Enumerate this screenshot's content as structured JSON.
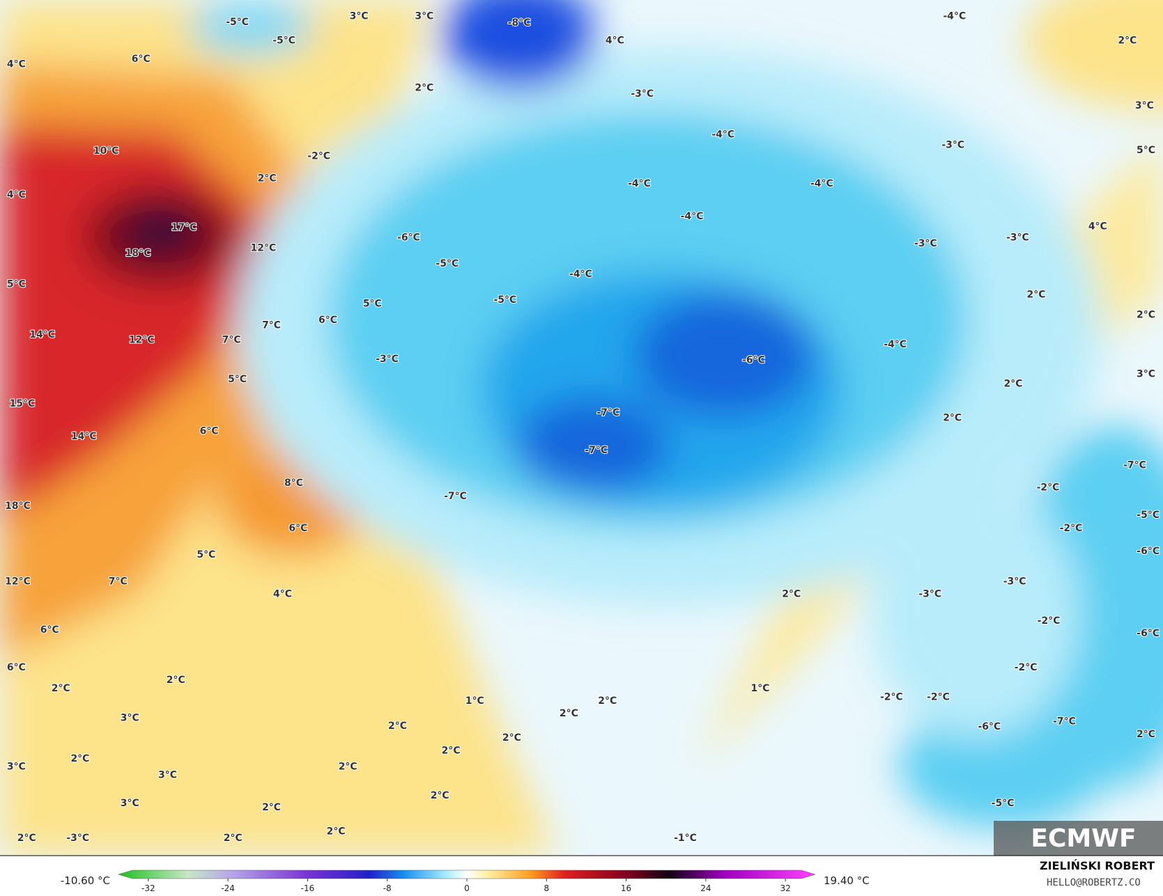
{
  "map_labels": [
    "3°C",
    "3°C",
    "-8°C",
    "-5°C",
    "-5°C",
    "-4°C",
    "2°C",
    "6°C",
    "4°C",
    "4°C",
    "2°C",
    "-3°C",
    "3°C",
    "10°C",
    "-2°C",
    "-4°C",
    "-3°C",
    "5°C",
    "2°C",
    "4°C",
    "-4°C",
    "-4°C",
    "-4°C",
    "17°C",
    "4°C",
    "-6°C",
    "-3°C",
    "-3°C",
    "12°C",
    "18°C",
    "-5°C",
    "-4°C",
    "5°C",
    "-5°C",
    "2°C",
    "5°C",
    "2°C",
    "6°C",
    "7°C",
    "14°C",
    "12°C",
    "7°C",
    "-4°C",
    "-6°C",
    "-3°C",
    "3°C",
    "5°C",
    "2°C",
    "15°C",
    "-7°C",
    "2°C",
    "6°C",
    "14°C",
    "-7°C",
    "-7°C",
    "8°C",
    "-2°C",
    "-7°C",
    "18°C",
    "-5°C",
    "6°C",
    "-2°C",
    "-6°C",
    "5°C",
    "12°C",
    "7°C",
    "-3°C",
    "4°C",
    "2°C",
    "-3°C",
    "-2°C",
    "6°C",
    "-6°C",
    "6°C",
    "-2°C",
    "2°C",
    "2°C",
    "1°C",
    "-2°C",
    "-2°C",
    "1°C",
    "2°C",
    "2°C",
    "3°C",
    "-7°C",
    "-6°C",
    "2°C",
    "2°C",
    "2°C",
    "2°C",
    "2°C",
    "3°C",
    "2°C",
    "3°C",
    "2°C",
    "3°C",
    "-5°C",
    "2°C",
    "2°C",
    "2°C",
    "-3°C",
    "2°C",
    "-1°C"
  ],
  "colorbar": {
    "min_label": "-10.60 °C",
    "max_label": "19.40 °C",
    "clim": [
      -35,
      35
    ],
    "ticks": [
      -32,
      -24,
      -16,
      -8,
      0,
      8,
      16,
      24,
      32
    ]
  },
  "logo": "ECMWF",
  "credit": {
    "author": "ZIELIŃSKI ROBERT",
    "contact": "HELLO@ROBERTZ.CO"
  }
}
